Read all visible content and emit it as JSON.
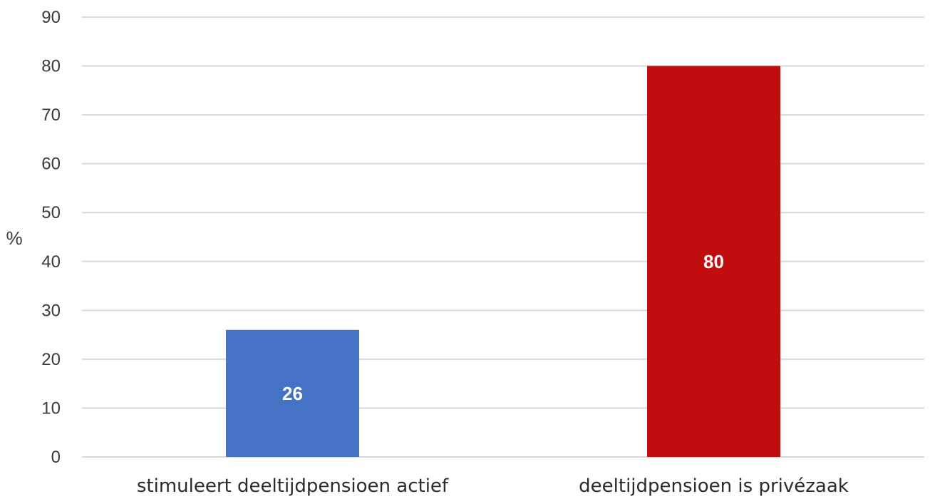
{
  "chart_data": {
    "type": "bar",
    "categories": [
      "stimuleert deeltijdpensioen actief",
      "deeltijdpensioen is privézaak"
    ],
    "values": [
      26,
      80
    ],
    "bar_colors": [
      "#4472C4",
      "#C00D0D"
    ],
    "data_labels": [
      "26",
      "80"
    ],
    "ylabel": "%",
    "ylim": [
      0,
      90
    ],
    "yticks": [
      0,
      10,
      20,
      30,
      40,
      50,
      60,
      70,
      80,
      90
    ],
    "grid": true,
    "legend": "none"
  }
}
